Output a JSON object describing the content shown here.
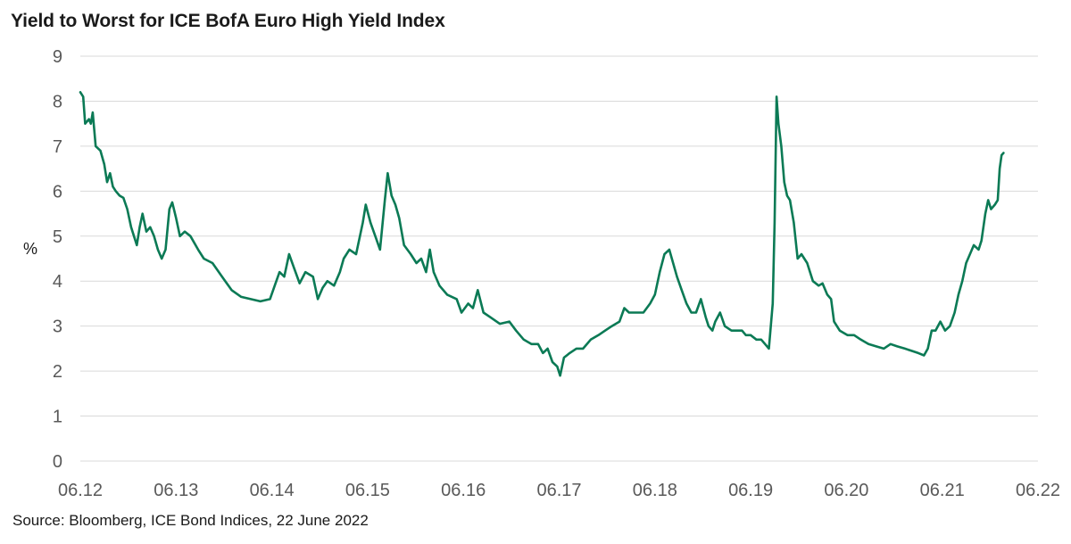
{
  "title": "Yield to Worst for ICE BofA Euro High Yield Index",
  "source": "Source: Bloomberg,  ICE Bond Indices, 22 June 2022",
  "colors": {
    "line": "#0b7a55",
    "grid": "#d9d9d9",
    "tick_text": "#595959"
  },
  "chart_data": {
    "type": "line",
    "title": "Yield to Worst for ICE BofA Euro High Yield Index",
    "xlabel": "",
    "ylabel": "%",
    "ylim": [
      0,
      9
    ],
    "xlim": [
      2012.47,
      2022.47
    ],
    "grid": true,
    "yticks": [
      0,
      1,
      2,
      3,
      4,
      5,
      6,
      7,
      8,
      9
    ],
    "xticks": [
      {
        "label": "06.12",
        "x": 2012.47
      },
      {
        "label": "06.13",
        "x": 2013.47
      },
      {
        "label": "06.14",
        "x": 2014.47
      },
      {
        "label": "06.15",
        "x": 2015.47
      },
      {
        "label": "06.16",
        "x": 2016.47
      },
      {
        "label": "06.17",
        "x": 2017.47
      },
      {
        "label": "06.18",
        "x": 2018.47
      },
      {
        "label": "06.19",
        "x": 2019.47
      },
      {
        "label": "06.20",
        "x": 2020.47
      },
      {
        "label": "06.21",
        "x": 2021.47
      },
      {
        "label": "06.22",
        "x": 2022.47
      }
    ],
    "series": [
      {
        "points": [
          [
            2012.47,
            8.2
          ],
          [
            2012.5,
            8.1
          ],
          [
            2012.52,
            7.5
          ],
          [
            2012.56,
            7.6
          ],
          [
            2012.58,
            7.5
          ],
          [
            2012.6,
            7.75
          ],
          [
            2012.63,
            7.0
          ],
          [
            2012.68,
            6.9
          ],
          [
            2012.72,
            6.6
          ],
          [
            2012.75,
            6.2
          ],
          [
            2012.78,
            6.4
          ],
          [
            2012.81,
            6.1
          ],
          [
            2012.84,
            6.0
          ],
          [
            2012.88,
            5.9
          ],
          [
            2012.92,
            5.85
          ],
          [
            2012.96,
            5.6
          ],
          [
            2013.0,
            5.2
          ],
          [
            2013.03,
            5.0
          ],
          [
            2013.06,
            4.8
          ],
          [
            2013.09,
            5.2
          ],
          [
            2013.12,
            5.5
          ],
          [
            2013.16,
            5.1
          ],
          [
            2013.2,
            5.2
          ],
          [
            2013.24,
            5.0
          ],
          [
            2013.28,
            4.7
          ],
          [
            2013.32,
            4.5
          ],
          [
            2013.36,
            4.7
          ],
          [
            2013.4,
            5.6
          ],
          [
            2013.43,
            5.75
          ],
          [
            2013.47,
            5.4
          ],
          [
            2013.51,
            5.0
          ],
          [
            2013.56,
            5.1
          ],
          [
            2013.62,
            5.0
          ],
          [
            2013.7,
            4.7
          ],
          [
            2013.76,
            4.5
          ],
          [
            2013.85,
            4.4
          ],
          [
            2013.95,
            4.1
          ],
          [
            2014.05,
            3.8
          ],
          [
            2014.15,
            3.65
          ],
          [
            2014.25,
            3.6
          ],
          [
            2014.35,
            3.55
          ],
          [
            2014.45,
            3.6
          ],
          [
            2014.5,
            3.9
          ],
          [
            2014.55,
            4.2
          ],
          [
            2014.6,
            4.1
          ],
          [
            2014.65,
            4.6
          ],
          [
            2014.7,
            4.3
          ],
          [
            2014.76,
            3.95
          ],
          [
            2014.82,
            4.2
          ],
          [
            2014.9,
            4.1
          ],
          [
            2014.95,
            3.6
          ],
          [
            2015.0,
            3.85
          ],
          [
            2015.05,
            4.0
          ],
          [
            2015.12,
            3.9
          ],
          [
            2015.18,
            4.2
          ],
          [
            2015.22,
            4.5
          ],
          [
            2015.28,
            4.7
          ],
          [
            2015.35,
            4.6
          ],
          [
            2015.42,
            5.3
          ],
          [
            2015.45,
            5.7
          ],
          [
            2015.5,
            5.3
          ],
          [
            2015.55,
            5.0
          ],
          [
            2015.6,
            4.7
          ],
          [
            2015.65,
            5.8
          ],
          [
            2015.68,
            6.4
          ],
          [
            2015.72,
            5.9
          ],
          [
            2015.76,
            5.7
          ],
          [
            2015.8,
            5.4
          ],
          [
            2015.85,
            4.8
          ],
          [
            2015.92,
            4.6
          ],
          [
            2015.98,
            4.4
          ],
          [
            2016.03,
            4.5
          ],
          [
            2016.08,
            4.2
          ],
          [
            2016.12,
            4.7
          ],
          [
            2016.16,
            4.2
          ],
          [
            2016.22,
            3.9
          ],
          [
            2016.3,
            3.7
          ],
          [
            2016.4,
            3.6
          ],
          [
            2016.45,
            3.3
          ],
          [
            2016.52,
            3.5
          ],
          [
            2016.57,
            3.4
          ],
          [
            2016.62,
            3.8
          ],
          [
            2016.68,
            3.3
          ],
          [
            2016.75,
            3.2
          ],
          [
            2016.85,
            3.05
          ],
          [
            2016.95,
            3.1
          ],
          [
            2017.02,
            2.9
          ],
          [
            2017.1,
            2.7
          ],
          [
            2017.18,
            2.6
          ],
          [
            2017.25,
            2.6
          ],
          [
            2017.3,
            2.4
          ],
          [
            2017.35,
            2.5
          ],
          [
            2017.4,
            2.2
          ],
          [
            2017.45,
            2.1
          ],
          [
            2017.48,
            1.9
          ],
          [
            2017.52,
            2.3
          ],
          [
            2017.58,
            2.4
          ],
          [
            2017.65,
            2.5
          ],
          [
            2017.72,
            2.5
          ],
          [
            2017.8,
            2.7
          ],
          [
            2017.88,
            2.8
          ],
          [
            2017.95,
            2.9
          ],
          [
            2018.02,
            3.0
          ],
          [
            2018.1,
            3.1
          ],
          [
            2018.15,
            3.4
          ],
          [
            2018.2,
            3.3
          ],
          [
            2018.28,
            3.3
          ],
          [
            2018.35,
            3.3
          ],
          [
            2018.42,
            3.5
          ],
          [
            2018.47,
            3.7
          ],
          [
            2018.52,
            4.2
          ],
          [
            2018.57,
            4.6
          ],
          [
            2018.62,
            4.7
          ],
          [
            2018.66,
            4.4
          ],
          [
            2018.7,
            4.1
          ],
          [
            2018.75,
            3.8
          ],
          [
            2018.8,
            3.5
          ],
          [
            2018.85,
            3.3
          ],
          [
            2018.9,
            3.3
          ],
          [
            2018.95,
            3.6
          ],
          [
            2019.0,
            3.2
          ],
          [
            2019.03,
            3.0
          ],
          [
            2019.07,
            2.9
          ],
          [
            2019.1,
            3.1
          ],
          [
            2019.15,
            3.3
          ],
          [
            2019.2,
            3.0
          ],
          [
            2019.27,
            2.9
          ],
          [
            2019.33,
            2.9
          ],
          [
            2019.38,
            2.9
          ],
          [
            2019.42,
            2.8
          ],
          [
            2019.47,
            2.8
          ],
          [
            2019.53,
            2.7
          ],
          [
            2019.58,
            2.7
          ],
          [
            2019.62,
            2.6
          ],
          [
            2019.66,
            2.5
          ],
          [
            2019.7,
            3.5
          ],
          [
            2019.72,
            5.3
          ],
          [
            2019.74,
            8.1
          ],
          [
            2019.76,
            7.5
          ],
          [
            2019.79,
            7.0
          ],
          [
            2019.82,
            6.2
          ],
          [
            2019.85,
            5.9
          ],
          [
            2019.88,
            5.8
          ],
          [
            2019.92,
            5.3
          ],
          [
            2019.96,
            4.5
          ],
          [
            2020.0,
            4.6
          ],
          [
            2020.06,
            4.4
          ],
          [
            2020.12,
            4.0
          ],
          [
            2020.18,
            3.9
          ],
          [
            2020.22,
            3.95
          ],
          [
            2020.27,
            3.7
          ],
          [
            2020.31,
            3.6
          ],
          [
            2020.34,
            3.1
          ],
          [
            2020.4,
            2.9
          ],
          [
            2020.48,
            2.8
          ],
          [
            2020.55,
            2.8
          ],
          [
            2020.62,
            2.7
          ],
          [
            2020.7,
            2.6
          ],
          [
            2020.78,
            2.55
          ],
          [
            2020.86,
            2.5
          ],
          [
            2020.93,
            2.6
          ],
          [
            2021.0,
            2.55
          ],
          [
            2021.08,
            2.5
          ],
          [
            2021.15,
            2.45
          ],
          [
            2021.22,
            2.4
          ],
          [
            2021.28,
            2.35
          ],
          [
            2021.32,
            2.5
          ],
          [
            2021.36,
            2.9
          ],
          [
            2021.4,
            2.9
          ],
          [
            2021.45,
            3.1
          ],
          [
            2021.5,
            2.9
          ],
          [
            2021.55,
            3.0
          ],
          [
            2021.6,
            3.3
          ],
          [
            2021.64,
            3.7
          ],
          [
            2021.68,
            4.0
          ],
          [
            2021.72,
            4.4
          ],
          [
            2021.76,
            4.6
          ],
          [
            2021.8,
            4.8
          ],
          [
            2021.85,
            4.7
          ],
          [
            2021.88,
            4.9
          ],
          [
            2021.92,
            5.5
          ],
          [
            2021.95,
            5.8
          ],
          [
            2021.98,
            5.6
          ],
          [
            2022.02,
            5.7
          ],
          [
            2022.05,
            5.8
          ],
          [
            2022.07,
            6.5
          ],
          [
            2022.09,
            6.8
          ],
          [
            2022.11,
            6.85
          ]
        ]
      }
    ]
  }
}
